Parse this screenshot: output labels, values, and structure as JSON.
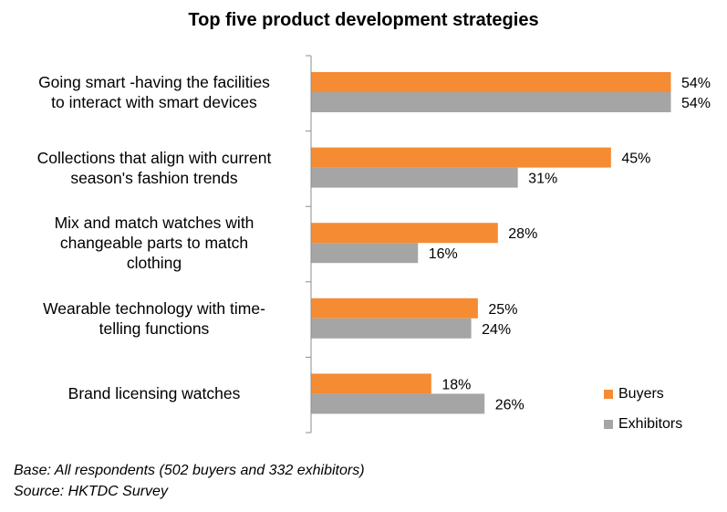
{
  "chart_data": {
    "type": "bar",
    "orientation": "horizontal",
    "title": "Top five product development strategies",
    "categories": [
      "Going smart -having the facilities to interact with smart devices",
      "Collections that align with current season's fashion trends",
      "Mix and match watches with changeable parts to match clothing",
      "Wearable technology with time-telling functions",
      "Brand licensing watches"
    ],
    "category_lines": [
      [
        "Going smart -having the facilities",
        "to interact with smart devices"
      ],
      [
        "Collections that align with current",
        "season's fashion trends"
      ],
      [
        "Mix and match watches with",
        "changeable parts to match",
        "clothing"
      ],
      [
        "Wearable technology with time-",
        "telling functions"
      ],
      [
        "Brand licensing watches"
      ]
    ],
    "series": [
      {
        "name": "Buyers",
        "values": [
          54,
          45,
          28,
          25,
          18
        ],
        "labels": [
          "54%",
          "45%",
          "28%",
          "25%",
          "18%"
        ],
        "color": "#f58b33"
      },
      {
        "name": "Exhibitors",
        "values": [
          54,
          31,
          16,
          24,
          26
        ],
        "labels": [
          "54%",
          "31%",
          "16%",
          "24%",
          "26%"
        ],
        "color": "#a5a5a5"
      }
    ],
    "legend_position": "bottom-right",
    "grid": false
  },
  "footnotes": {
    "base": "Base:  All respondents (502 buyers and 332 exhibitors)",
    "source": "Source: HKTDC Survey"
  }
}
